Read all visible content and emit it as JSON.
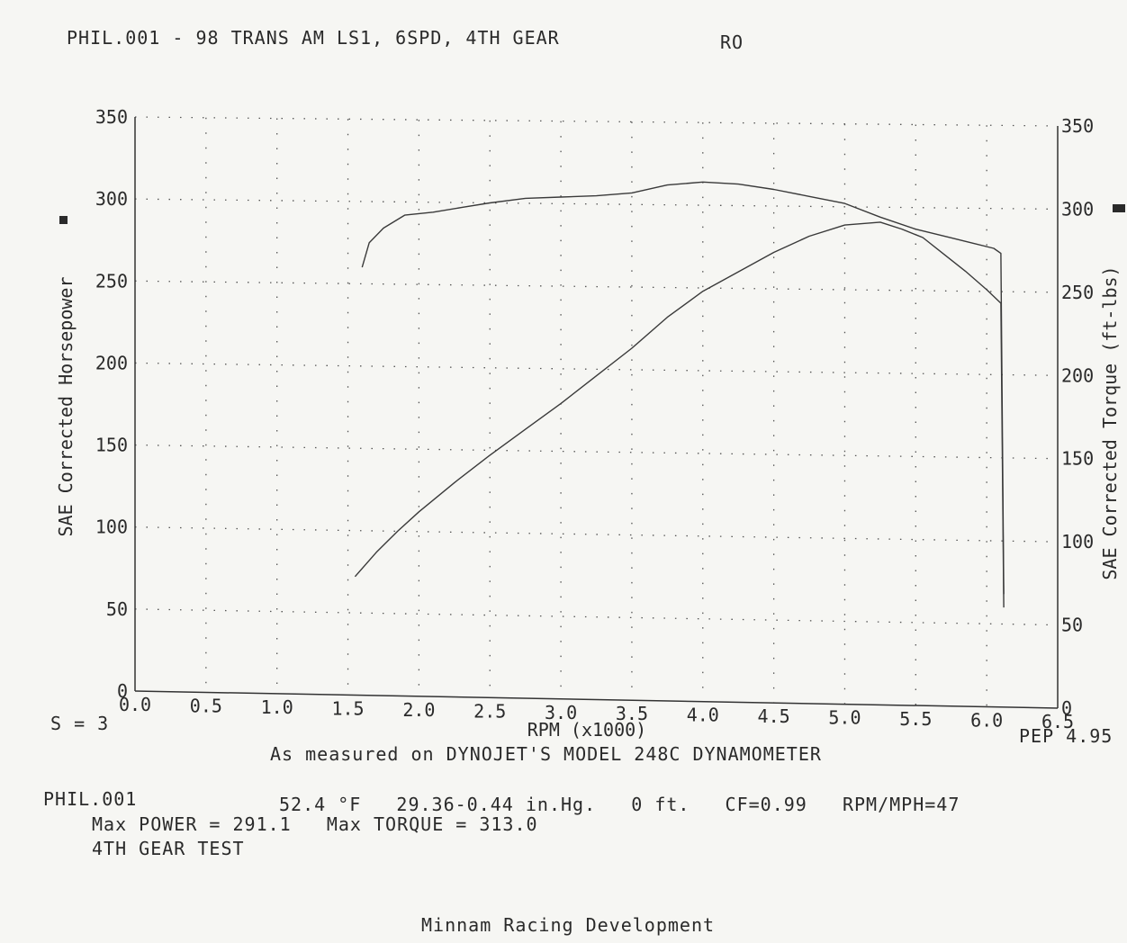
{
  "header": {
    "title": "PHIL.001 - 98 TRANS AM LS1, 6SPD, 4TH GEAR",
    "code": "RO"
  },
  "footer": {
    "smoothing": "S = 3",
    "pep": "PEP 4.95",
    "dyno": "As measured on DYNOJET'S MODEL 248C DYNAMOMETER",
    "run_name": "PHIL.001",
    "conditions": "52.4 °F   29.36-0.44 in.Hg.   0 ft.   CF=0.99   RPM/MPH=47",
    "max_line": "Max POWER = 291.1   Max TORQUE = 313.0",
    "test": "4TH GEAR TEST",
    "company": "Minnam Racing Development"
  },
  "chart_data": {
    "type": "line",
    "title": "PHIL.001 - 98 TRANS AM LS1, 6SPD, 4TH GEAR",
    "xlabel": "RPM (x1000)",
    "ylabel": "SAE Corrected Horsepower",
    "y2label": "SAE Corrected Torque (ft-lbs)",
    "xlim": [
      0,
      6.5
    ],
    "ylim": [
      0,
      350
    ],
    "y2lim": [
      0,
      350
    ],
    "x_ticks": [
      "0.0",
      "0.5",
      "1.0",
      "1.5",
      "2.0",
      "2.5",
      "3.0",
      "3.5",
      "4.0",
      "4.5",
      "5.0",
      "5.5",
      "6.0",
      "6.5"
    ],
    "y_ticks": [
      "0",
      "50",
      "100",
      "150",
      "200",
      "250",
      "300",
      "350"
    ],
    "y2_ticks": [
      "0",
      "50",
      "100",
      "150",
      "200",
      "250",
      "300",
      "350"
    ],
    "grid": "dotted",
    "series": [
      {
        "axis": "left",
        "x": [
          1.55,
          1.7,
          1.85,
          2.0,
          2.25,
          2.5,
          2.75,
          3.0,
          3.25,
          3.5,
          3.75,
          4.0,
          4.25,
          4.5,
          4.75,
          5.0,
          5.25,
          5.4,
          5.55,
          5.7,
          5.85,
          6.0,
          6.1,
          6.12
        ],
        "y": [
          72,
          87,
          100,
          112,
          130,
          147,
          163,
          179,
          196,
          213,
          232,
          248,
          260,
          272,
          282,
          289,
          291,
          287,
          282,
          272,
          262,
          251,
          243,
          60
        ]
      },
      {
        "axis": "right",
        "x": [
          1.6,
          1.65,
          1.75,
          1.9,
          2.1,
          2.3,
          2.5,
          2.75,
          3.0,
          3.25,
          3.5,
          3.75,
          4.0,
          4.25,
          4.5,
          4.75,
          5.0,
          5.25,
          5.5,
          5.75,
          5.9,
          6.05,
          6.1,
          6.12
        ],
        "y": [
          260,
          275,
          284,
          292,
          294,
          297,
          300,
          303,
          304,
          305,
          307,
          312,
          314,
          313,
          310,
          306,
          302,
          294,
          287,
          282,
          279,
          276,
          273,
          68
        ]
      }
    ]
  }
}
